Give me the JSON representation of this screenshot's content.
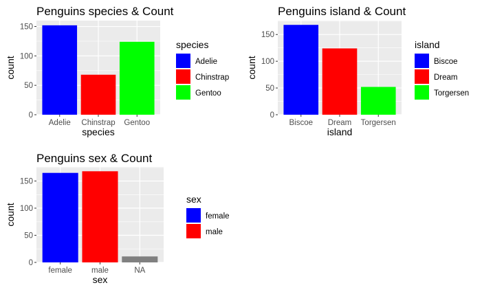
{
  "chart_data": [
    {
      "type": "bar",
      "title": "Penguins species & Count",
      "xlabel": "species",
      "ylabel": "count",
      "categories": [
        "Adelie",
        "Chinstrap",
        "Gentoo"
      ],
      "values": [
        152,
        68,
        124
      ],
      "colors": [
        "#0000FF",
        "#FF0000",
        "#00FF00"
      ],
      "ylim": [
        0,
        160
      ],
      "yticks": [
        0,
        50,
        100,
        150
      ],
      "legend": {
        "title": "species",
        "entries": [
          "Adelie",
          "Chinstrap",
          "Gentoo"
        ],
        "position": "right"
      },
      "grid": true,
      "panel_background": "#EBEBEB"
    },
    {
      "type": "bar",
      "title": "Penguins island & Count",
      "xlabel": "island",
      "ylabel": "count",
      "categories": [
        "Biscoe",
        "Dream",
        "Torgersen"
      ],
      "values": [
        168,
        124,
        52
      ],
      "colors": [
        "#0000FF",
        "#FF0000",
        "#00FF00"
      ],
      "ylim": [
        0,
        176
      ],
      "yticks": [
        0,
        50,
        100,
        150
      ],
      "legend": {
        "title": "island",
        "entries": [
          "Biscoe",
          "Dream",
          "Torgersen"
        ],
        "position": "right"
      },
      "grid": true,
      "panel_background": "#EBEBEB"
    },
    {
      "type": "bar",
      "title": "Penguins sex & Count",
      "xlabel": "sex",
      "ylabel": "count",
      "categories": [
        "female",
        "male",
        "NA"
      ],
      "values": [
        165,
        168,
        11
      ],
      "colors": [
        "#0000FF",
        "#FF0000",
        "#808080"
      ],
      "ylim": [
        0,
        176
      ],
      "yticks": [
        0,
        50,
        100,
        150
      ],
      "legend": {
        "title": "sex",
        "entries": [
          "female",
          "male"
        ],
        "position": "right"
      },
      "grid": true,
      "panel_background": "#EBEBEB"
    }
  ]
}
